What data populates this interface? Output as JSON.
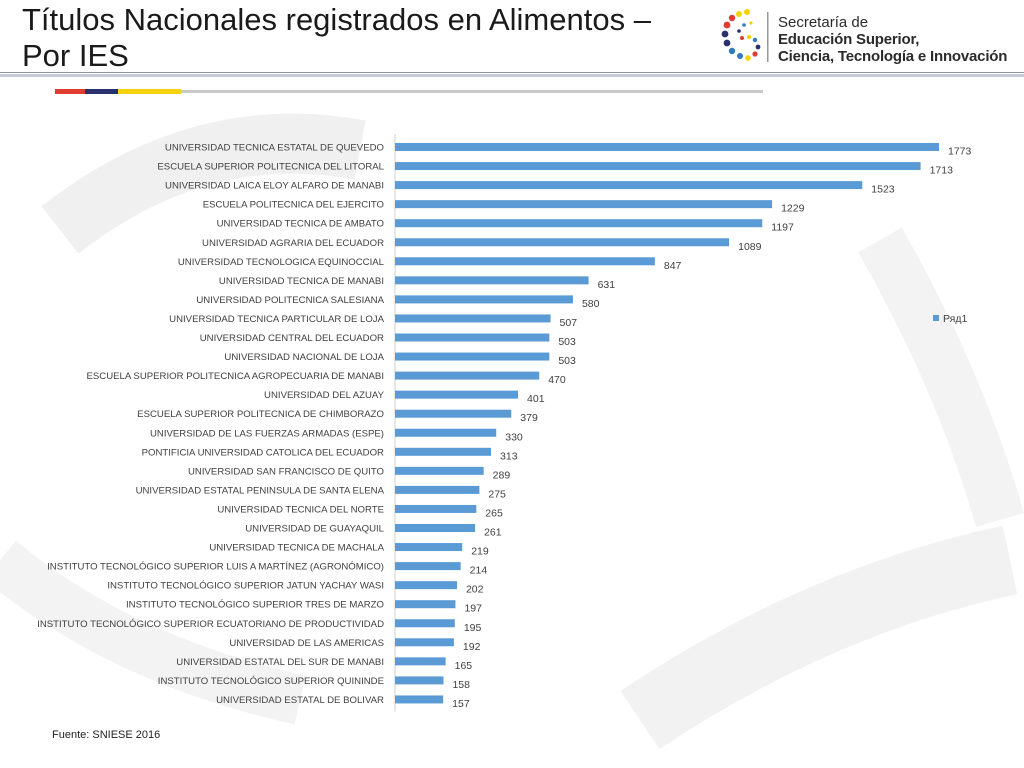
{
  "slide": {
    "title_line1": "Títulos Nacionales registrados en Alimentos –",
    "title_line2": "Por IES",
    "source": "Fuente: SNIESE 2016"
  },
  "logo": {
    "line1": "Secretaría de",
    "line2": "Educación Superior,",
    "line3": "Ciencia, Tecnología e Innovación"
  },
  "colors": {
    "bar": "#5b9bd5",
    "accent_red": "#e03c31",
    "accent_navy": "#2a2f6e",
    "accent_yellow": "#f5d20a",
    "rule_gray": "#b8bfc8"
  },
  "chart_data": {
    "type": "bar",
    "orientation": "horizontal",
    "categories": [
      "UNIVERSIDAD TECNICA ESTATAL DE QUEVEDO",
      "ESCUELA SUPERIOR POLITECNICA DEL LITORAL",
      "UNIVERSIDAD LAICA ELOY ALFARO DE MANABI",
      "ESCUELA POLITECNICA DEL EJERCITO",
      "UNIVERSIDAD TECNICA DE AMBATO",
      "UNIVERSIDAD AGRARIA DEL ECUADOR",
      "UNIVERSIDAD TECNOLOGICA EQUINOCCIAL",
      "UNIVERSIDAD TECNICA DE MANABI",
      "UNIVERSIDAD POLITECNICA SALESIANA",
      "UNIVERSIDAD TECNICA PARTICULAR DE LOJA",
      "UNIVERSIDAD CENTRAL DEL ECUADOR",
      "UNIVERSIDAD NACIONAL DE LOJA",
      "ESCUELA SUPERIOR POLITECNICA AGROPECUARIA DE MANABI",
      "UNIVERSIDAD DEL AZUAY",
      "ESCUELA SUPERIOR POLITECNICA DE CHIMBORAZO",
      "UNIVERSIDAD DE LAS FUERZAS ARMADAS (ESPE)",
      "PONTIFICIA UNIVERSIDAD CATOLICA DEL ECUADOR",
      "UNIVERSIDAD SAN FRANCISCO DE QUITO",
      "UNIVERSIDAD ESTATAL PENINSULA DE SANTA ELENA",
      "UNIVERSIDAD TECNICA DEL NORTE",
      "UNIVERSIDAD DE GUAYAQUIL",
      "UNIVERSIDAD TECNICA DE MACHALA",
      "INSTITUTO TECNOLÓGICO SUPERIOR LUIS A MARTÍNEZ (AGRONÓMICO)",
      "INSTITUTO TECNOLÓGICO SUPERIOR JATUN YACHAY WASI",
      "INSTITUTO TECNOLÓGICO SUPERIOR TRES DE MARZO",
      "INSTITUTO TECNOLÓGICO SUPERIOR ECUATORIANO DE PRODUCTIVIDAD",
      "UNIVERSIDAD DE LAS AMERICAS",
      "UNIVERSIDAD ESTATAL DEL SUR DE MANABI",
      "INSTITUTO TECNOLÓGICO SUPERIOR QUININDE",
      "UNIVERSIDAD ESTATAL DE BOLIVAR"
    ],
    "series": [
      {
        "name": "Ряд1",
        "values": [
          1773,
          1713,
          1523,
          1229,
          1197,
          1089,
          847,
          631,
          580,
          507,
          503,
          503,
          470,
          401,
          379,
          330,
          313,
          289,
          275,
          265,
          261,
          219,
          214,
          202,
          197,
          195,
          192,
          165,
          158,
          157
        ]
      }
    ],
    "xlim": [
      0,
      1773
    ],
    "data_labels": true,
    "grid": false,
    "legend_position": "right"
  }
}
